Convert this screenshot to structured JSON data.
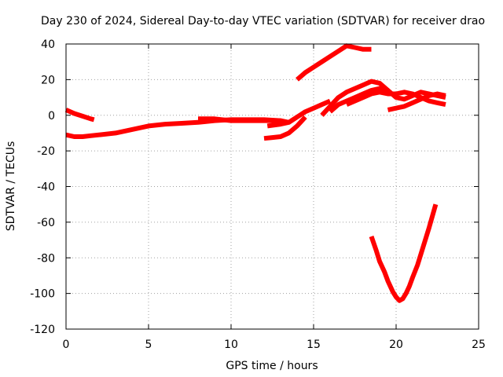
{
  "chart_data": {
    "type": "scatter",
    "title": "Day 230 of 2024, Sidereal Day-to-day VTEC variation (SDTVAR) for receiver drao",
    "xlabel": "GPS time / hours",
    "ylabel": "SDTVAR / TECUs",
    "xlim": [
      0,
      25
    ],
    "ylim": [
      -120,
      40
    ],
    "xticks": [
      0,
      5,
      10,
      15,
      20,
      25
    ],
    "yticks": [
      -120,
      -100,
      -80,
      -60,
      -40,
      -20,
      0,
      20,
      40
    ],
    "grid": true,
    "color": "#ff0000",
    "series": [
      {
        "name": "track-1",
        "x": [
          0.0,
          0.5,
          1.0,
          1.5,
          1.7
        ],
        "y": [
          3,
          1,
          -0.5,
          -2,
          -2.5
        ]
      },
      {
        "name": "track-2",
        "x": [
          0.0,
          0.5,
          1.0,
          1.5,
          2.0,
          3.0,
          4.0,
          5.0,
          6.0,
          7.0,
          8.0,
          9.0,
          10.0,
          11.0,
          12.0,
          13.0
        ],
        "y": [
          -11,
          -12,
          -12,
          -11.5,
          -11,
          -10,
          -8,
          -6,
          -5,
          -4.5,
          -4,
          -3,
          -2.5,
          -2.5,
          -2.5,
          -3
        ]
      },
      {
        "name": "track-3",
        "x": [
          8.0,
          9.0,
          10.0,
          11.0,
          12.0,
          13.0,
          13.5
        ],
        "y": [
          -2,
          -2,
          -3,
          -3,
          -3,
          -3,
          -4
        ]
      },
      {
        "name": "track-4",
        "x": [
          12.2,
          13.0,
          13.5,
          14.0,
          14.5,
          15.0,
          15.5,
          16.0
        ],
        "y": [
          -6,
          -5,
          -4,
          -1,
          2,
          4,
          6,
          8
        ]
      },
      {
        "name": "track-5",
        "x": [
          12.0,
          12.5,
          13.0,
          13.5,
          14.0,
          14.5
        ],
        "y": [
          -13,
          -12.5,
          -12,
          -10,
          -6,
          -1
        ]
      },
      {
        "name": "track-6",
        "x": [
          14.0,
          14.5,
          15.0,
          15.5,
          16.0,
          16.5,
          17.0,
          17.5,
          18.0,
          18.5
        ],
        "y": [
          20,
          24,
          27,
          30,
          33,
          36,
          39,
          38,
          37,
          37
        ]
      },
      {
        "name": "track-7",
        "x": [
          15.5,
          16.0,
          16.5,
          17.0,
          17.5,
          18.0,
          18.5,
          19.0,
          19.5
        ],
        "y": [
          0,
          5,
          10,
          13,
          15,
          17,
          19,
          18,
          14
        ]
      },
      {
        "name": "track-8",
        "x": [
          16.0,
          16.5,
          17.0,
          17.5,
          18.0,
          18.5,
          19.0,
          19.5,
          20.0,
          20.5,
          21.0,
          21.5,
          22.0,
          22.5,
          23.0
        ],
        "y": [
          2,
          6,
          8,
          10,
          12,
          14,
          15,
          14,
          10,
          9,
          11,
          13,
          12,
          11,
          10
        ]
      },
      {
        "name": "track-9",
        "x": [
          17.0,
          17.5,
          18.0,
          18.5,
          19.0,
          19.5,
          20.0,
          20.5,
          21.0,
          21.5,
          22.0,
          22.5,
          23.0
        ],
        "y": [
          6,
          8,
          10,
          12,
          13,
          12,
          12,
          13,
          12,
          10,
          8,
          7,
          6
        ]
      },
      {
        "name": "track-10",
        "x": [
          19.5,
          20.0,
          20.5,
          21.0,
          21.5,
          22.0,
          22.5,
          23.0
        ],
        "y": [
          3,
          4,
          5,
          7,
          9,
          11,
          12,
          11
        ]
      },
      {
        "name": "track-11",
        "x": [
          18.5,
          18.8,
          19.0,
          19.3,
          19.5,
          19.8,
          20.0,
          20.2,
          20.4,
          20.6,
          20.8,
          21.0,
          21.3,
          21.6,
          22.0,
          22.4
        ],
        "y": [
          -68,
          -76,
          -82,
          -88,
          -93,
          -99,
          -102,
          -104,
          -103,
          -100,
          -96,
          -91,
          -84,
          -75,
          -63,
          -50
        ]
      }
    ]
  }
}
